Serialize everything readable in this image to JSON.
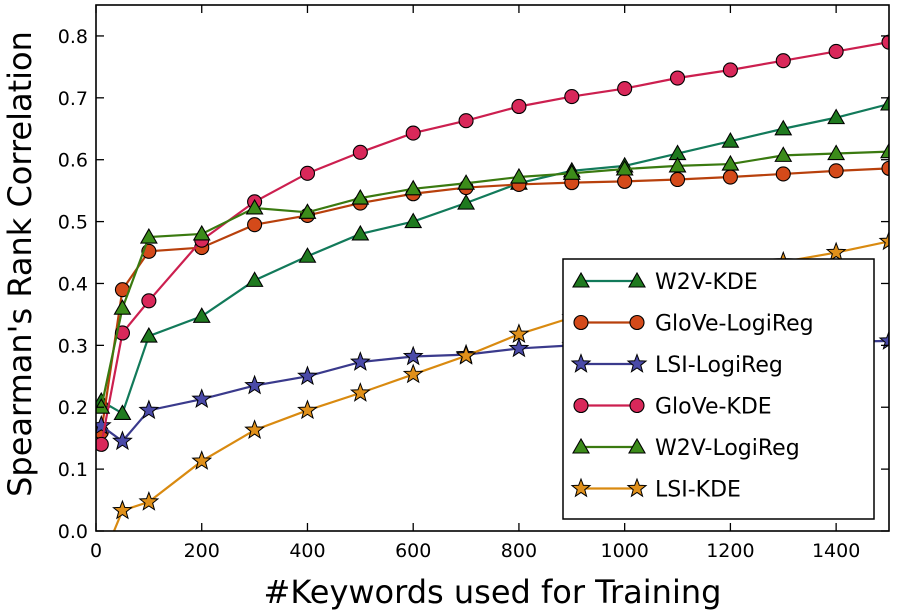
{
  "chart_data": {
    "type": "line",
    "xlabel": "#Keywords used for Training",
    "ylabel": "Spearman's Rank Correlation",
    "xlim": [
      0,
      1500
    ],
    "ylim": [
      0.0,
      0.85
    ],
    "xticks": [
      0,
      200,
      400,
      600,
      800,
      1000,
      1200,
      1400
    ],
    "yticks": [
      0.0,
      0.1,
      0.2,
      0.3,
      0.4,
      0.5,
      0.6,
      0.7,
      0.8
    ],
    "xtick_labels": [
      "0",
      "200",
      "400",
      "600",
      "800",
      "1000",
      "1200",
      "1400"
    ],
    "ytick_labels": [
      "0.0",
      "0.1",
      "0.2",
      "0.3",
      "0.4",
      "0.5",
      "0.6",
      "0.7",
      "0.8"
    ],
    "grid": false,
    "legend_position": "lower-right",
    "x": [
      10,
      50,
      100,
      200,
      300,
      400,
      500,
      600,
      700,
      800,
      900,
      1000,
      1100,
      1200,
      1300,
      1400,
      1500
    ],
    "series": [
      {
        "name": "W2V-KDE",
        "color": "#127a5a",
        "fill": "#1f7a1f",
        "marker": "triangle",
        "values": [
          0.21,
          0.19,
          0.315,
          0.347,
          0.405,
          0.444,
          0.48,
          0.5,
          0.53,
          0.562,
          0.582,
          0.59,
          0.61,
          0.63,
          0.65,
          0.668,
          0.69
        ]
      },
      {
        "name": "GloVe-LogiReg",
        "color": "#b8400c",
        "fill": "#d44a1a",
        "marker": "circle",
        "values": [
          0.16,
          0.39,
          0.452,
          0.458,
          0.495,
          0.51,
          0.53,
          0.545,
          0.555,
          0.56,
          0.563,
          0.565,
          0.568,
          0.572,
          0.577,
          0.582,
          0.586
        ]
      },
      {
        "name": "LSI-LogiReg",
        "color": "#3a3a8c",
        "fill": "#4a4aa8",
        "marker": "star",
        "values": [
          0.17,
          0.145,
          0.195,
          0.213,
          0.235,
          0.25,
          0.273,
          0.282,
          0.285,
          0.295,
          0.3,
          0.302,
          0.303,
          0.304,
          0.305,
          0.306,
          0.307
        ]
      },
      {
        "name": "GloVe-KDE",
        "color": "#cc1f4f",
        "fill": "#d9285a",
        "marker": "circle",
        "values": [
          0.14,
          0.32,
          0.372,
          0.47,
          0.532,
          0.578,
          0.612,
          0.643,
          0.663,
          0.686,
          0.702,
          0.715,
          0.732,
          0.745,
          0.76,
          0.775,
          0.79
        ]
      },
      {
        "name": "W2V-LogiReg",
        "color": "#3a7a10",
        "fill": "#3c8c1a",
        "marker": "triangle",
        "values": [
          0.2,
          0.36,
          0.475,
          0.48,
          0.522,
          0.515,
          0.538,
          0.553,
          0.562,
          0.572,
          0.578,
          0.585,
          0.59,
          0.593,
          0.607,
          0.61,
          0.613
        ]
      },
      {
        "name": "LSI-KDE",
        "color": "#d98a10",
        "fill": "#e0901a",
        "marker": "star",
        "values": [
          -0.05,
          0.033,
          0.047,
          0.113,
          0.163,
          0.195,
          0.223,
          0.253,
          0.283,
          0.318,
          0.345,
          0.37,
          0.395,
          0.418,
          0.435,
          0.45,
          0.468
        ]
      }
    ]
  }
}
